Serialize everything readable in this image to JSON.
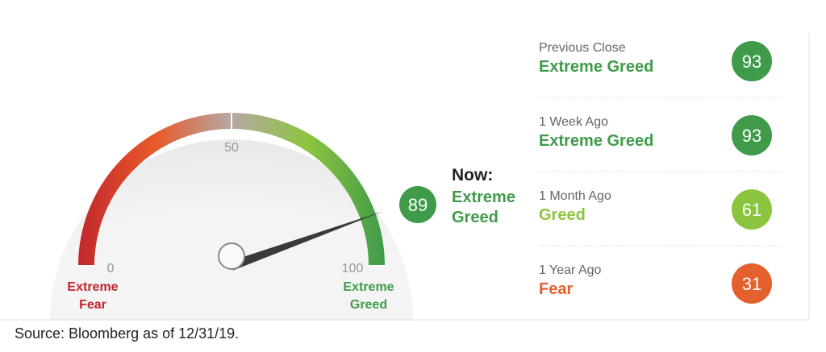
{
  "chart_data": {
    "type": "gauge",
    "value": 89,
    "value_color": "#3f9b4a",
    "xlim": [
      0,
      100
    ],
    "xticks": [
      0,
      50,
      100
    ],
    "now_label": "Now:",
    "now_rating": "Extreme Greed",
    "low_label": "Extreme Fear",
    "low_color": "#c0262c",
    "high_label": "Extreme Greed",
    "high_color": "#3f9b4a",
    "history": [
      {
        "label": "Previous Close",
        "rating": "Extreme Greed",
        "value": 93,
        "color": "#3f9b4a"
      },
      {
        "label": "1 Week Ago",
        "rating": "Extreme Greed",
        "value": 93,
        "color": "#3f9b4a"
      },
      {
        "label": "1 Month Ago",
        "rating": "Greed",
        "value": 61,
        "color": "#8cc43f"
      },
      {
        "label": "1 Year Ago",
        "rating": "Fear",
        "value": 31,
        "color": "#e4612e"
      }
    ],
    "source": "Source:  Bloomberg as of 12/31/19."
  }
}
